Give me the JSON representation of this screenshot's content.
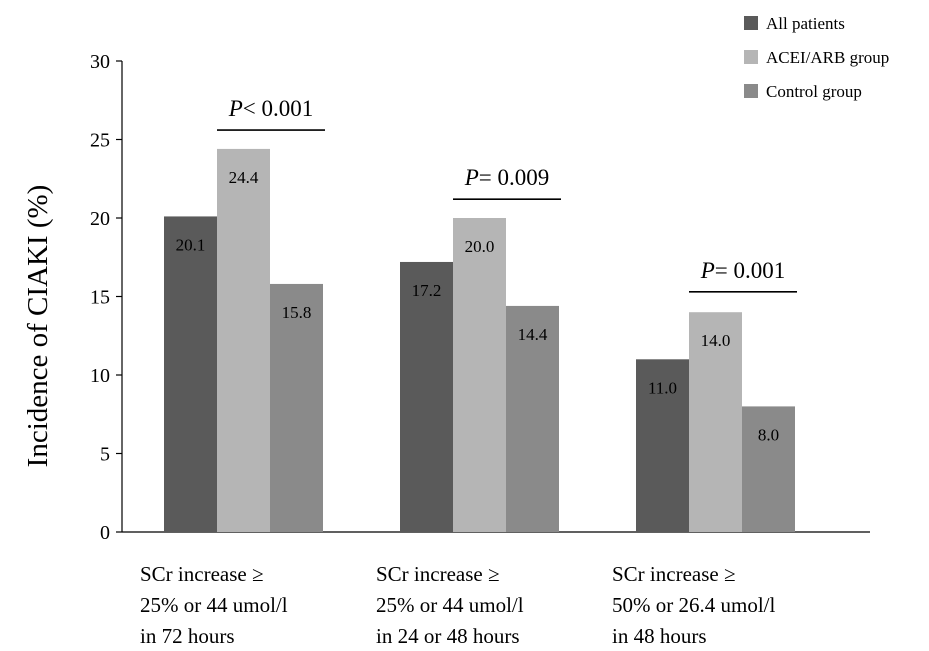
{
  "chart_data": {
    "type": "bar",
    "categories": [
      [
        "SCr increase ≥",
        "25% or 44 umol/l",
        "in 72 hours"
      ],
      [
        "SCr increase ≥",
        "25% or 44 umol/l",
        "in 24 or 48 hours"
      ],
      [
        "SCr increase ≥",
        "50% or 26.4 umol/l",
        "in 48 hours"
      ]
    ],
    "series": [
      {
        "name": "All patients",
        "color": "#5a5a5a",
        "values": [
          20.1,
          17.2,
          11.0
        ],
        "labels": [
          "20.1",
          "17.2",
          "11.0"
        ]
      },
      {
        "name": "ACEI/ARB group",
        "color": "#b5b5b5",
        "values": [
          24.4,
          20.0,
          14.0
        ],
        "labels": [
          "24.4",
          "20.0",
          "14.0"
        ]
      },
      {
        "name": "Control group",
        "color": "#8a8a8a",
        "values": [
          15.8,
          14.4,
          8.0
        ],
        "labels": [
          "15.8",
          "14.4",
          "8.0"
        ]
      }
    ],
    "ylabel": "Incidence of CIAKI (%)",
    "ylim": [
      0,
      30
    ],
    "yticks": [
      0,
      5,
      10,
      15,
      20,
      25,
      30
    ],
    "grid": false,
    "legend_position": "top-right",
    "annotations": [
      {
        "category_index": 0,
        "p_symbol": "P",
        "p_text": "< 0.001",
        "line_y": 25.6
      },
      {
        "category_index": 1,
        "p_symbol": "P",
        "p_text": "= 0.009",
        "line_y": 21.2
      },
      {
        "category_index": 2,
        "p_symbol": "P",
        "p_text": "= 0.001",
        "line_y": 15.3
      }
    ]
  }
}
